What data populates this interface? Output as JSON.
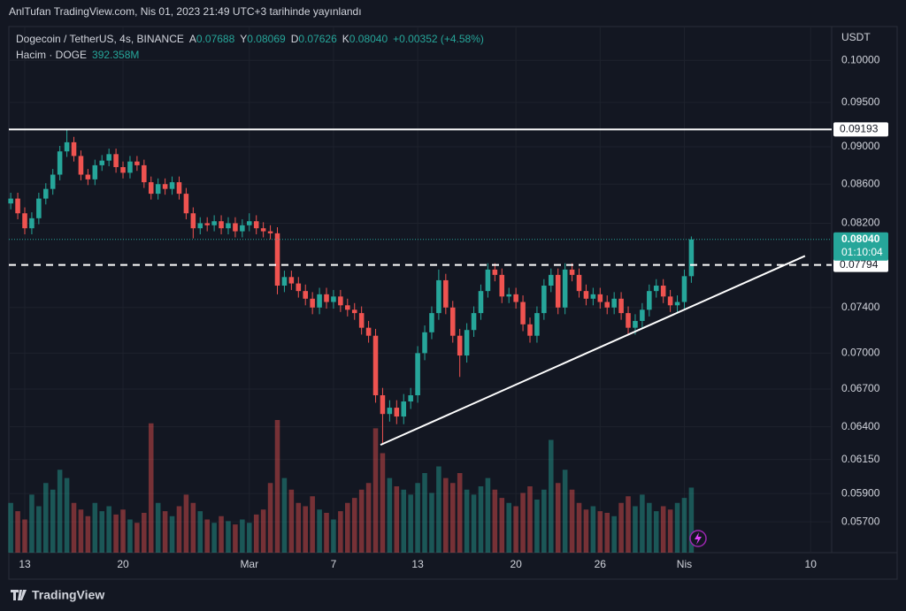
{
  "chart_data": {
    "type": "candlestick",
    "published": "AnlTufan TradingView.com, Nis 01, 2023 21:49 UTC+3 tarihinde yayınlandı",
    "symbol": "Dogecoin / TetherUS, 4s, BINANCE",
    "ohlc_legend": [
      {
        "label": "A",
        "value": "0.07688"
      },
      {
        "label": "Y",
        "value": "0.08069"
      },
      {
        "label": "D",
        "value": "0.07626"
      },
      {
        "label": "K",
        "value": "0.08040"
      }
    ],
    "change": "+0.00352 (+4.58%)",
    "volume_title": "Hacim · DOGE",
    "volume_value": "392.358M",
    "currency": "USDT",
    "brand": "TradingView",
    "log_scale": true,
    "grid": true,
    "up_color": "#26a69a",
    "down_color": "#ef5350",
    "x": [
      0,
      1,
      2,
      3,
      4,
      5,
      6,
      7,
      8,
      9,
      10,
      11,
      12,
      13,
      14,
      15,
      16,
      17,
      18,
      19,
      20,
      21,
      22,
      23,
      24,
      25,
      26,
      27,
      28,
      29,
      30,
      31,
      32,
      33,
      34,
      35,
      36,
      37,
      38,
      39,
      40,
      41,
      42,
      43,
      44,
      45,
      46,
      47,
      48,
      49,
      50,
      51,
      52,
      53,
      54,
      55,
      56,
      57,
      58,
      59,
      60,
      61,
      62,
      63,
      64,
      65,
      66,
      67,
      68,
      69,
      70,
      71,
      72,
      73,
      74,
      75,
      76,
      77,
      78,
      79,
      80,
      81,
      82,
      83,
      84,
      85,
      86,
      87,
      88,
      89,
      90,
      91,
      92,
      93,
      94,
      95,
      96,
      97
    ],
    "open": [
      0.084,
      0.0845,
      0.083,
      0.0815,
      0.0825,
      0.0845,
      0.0855,
      0.087,
      0.0895,
      0.0905,
      0.089,
      0.087,
      0.0865,
      0.088,
      0.0885,
      0.0892,
      0.0878,
      0.0872,
      0.0884,
      0.088,
      0.0862,
      0.085,
      0.086,
      0.0855,
      0.0862,
      0.085,
      0.083,
      0.0815,
      0.082,
      0.0818,
      0.0822,
      0.0815,
      0.082,
      0.0812,
      0.0818,
      0.0822,
      0.0815,
      0.0812,
      0.081,
      0.076,
      0.0768,
      0.0762,
      0.0755,
      0.0748,
      0.074,
      0.0752,
      0.0745,
      0.075,
      0.0742,
      0.0738,
      0.0735,
      0.0722,
      0.0715,
      0.0665,
      0.065,
      0.0655,
      0.0648,
      0.066,
      0.0665,
      0.07,
      0.0718,
      0.0735,
      0.0765,
      0.074,
      0.0715,
      0.0698,
      0.072,
      0.0735,
      0.0755,
      0.0775,
      0.077,
      0.075,
      0.0752,
      0.0745,
      0.0725,
      0.0715,
      0.0735,
      0.076,
      0.077,
      0.074,
      0.0775,
      0.077,
      0.0755,
      0.0748,
      0.0752,
      0.0745,
      0.074,
      0.0748,
      0.0735,
      0.0722,
      0.0728,
      0.0738,
      0.0755,
      0.076,
      0.075,
      0.0742,
      0.0745,
      0.07688
    ],
    "high": [
      0.0851,
      0.0851,
      0.0836,
      0.0831,
      0.0851,
      0.0861,
      0.0876,
      0.0901,
      0.092,
      0.0911,
      0.0896,
      0.0876,
      0.0886,
      0.0891,
      0.0898,
      0.0898,
      0.0884,
      0.089,
      0.089,
      0.0886,
      0.0868,
      0.0866,
      0.0866,
      0.0868,
      0.0868,
      0.0856,
      0.0836,
      0.0826,
      0.0826,
      0.0828,
      0.0828,
      0.0826,
      0.0826,
      0.0824,
      0.083,
      0.0828,
      0.0821,
      0.0818,
      0.0816,
      0.0774,
      0.0774,
      0.0768,
      0.0761,
      0.0754,
      0.0758,
      0.0758,
      0.0756,
      0.0756,
      0.0748,
      0.0744,
      0.0741,
      0.0728,
      0.0721,
      0.0671,
      0.0661,
      0.0661,
      0.0666,
      0.0671,
      0.0706,
      0.0724,
      0.0741,
      0.0775,
      0.0771,
      0.0746,
      0.0721,
      0.0726,
      0.0741,
      0.0761,
      0.0781,
      0.0781,
      0.0776,
      0.0758,
      0.0758,
      0.0751,
      0.0731,
      0.0741,
      0.0766,
      0.0776,
      0.0776,
      0.0781,
      0.0781,
      0.0776,
      0.0761,
      0.0758,
      0.0758,
      0.0751,
      0.0754,
      0.0754,
      0.0741,
      0.0734,
      0.0744,
      0.0761,
      0.0766,
      0.0766,
      0.0756,
      0.0751,
      0.0775,
      0.08069
    ],
    "low": [
      0.0834,
      0.0824,
      0.0809,
      0.0809,
      0.0819,
      0.0839,
      0.0849,
      0.0864,
      0.0889,
      0.0884,
      0.0864,
      0.0859,
      0.0859,
      0.0874,
      0.0879,
      0.0872,
      0.0866,
      0.0866,
      0.0874,
      0.0856,
      0.0844,
      0.0844,
      0.0849,
      0.0849,
      0.0844,
      0.0824,
      0.0805,
      0.0809,
      0.0812,
      0.0812,
      0.0809,
      0.0809,
      0.0806,
      0.0806,
      0.0812,
      0.0809,
      0.0806,
      0.0804,
      0.0752,
      0.0754,
      0.0756,
      0.0749,
      0.0742,
      0.0734,
      0.0734,
      0.0739,
      0.0739,
      0.0736,
      0.0732,
      0.0729,
      0.0716,
      0.0709,
      0.0659,
      0.0627,
      0.0644,
      0.0642,
      0.0642,
      0.0654,
      0.0659,
      0.0694,
      0.0712,
      0.0729,
      0.0734,
      0.0709,
      0.068,
      0.0692,
      0.0714,
      0.0729,
      0.0749,
      0.0764,
      0.0744,
      0.0744,
      0.0739,
      0.0719,
      0.0709,
      0.0709,
      0.0729,
      0.0754,
      0.0734,
      0.0734,
      0.0764,
      0.0749,
      0.0742,
      0.0742,
      0.0739,
      0.0734,
      0.0734,
      0.0729,
      0.0716,
      0.0716,
      0.0722,
      0.0732,
      0.0749,
      0.0744,
      0.0736,
      0.0736,
      0.0739,
      0.07626
    ],
    "close": [
      0.0845,
      0.083,
      0.0815,
      0.0825,
      0.0845,
      0.0855,
      0.087,
      0.0895,
      0.0905,
      0.089,
      0.087,
      0.0865,
      0.088,
      0.0885,
      0.0892,
      0.0878,
      0.0872,
      0.0884,
      0.088,
      0.0862,
      0.085,
      0.086,
      0.0855,
      0.0862,
      0.085,
      0.083,
      0.0815,
      0.082,
      0.0818,
      0.0822,
      0.0815,
      0.082,
      0.0812,
      0.0818,
      0.0822,
      0.0815,
      0.0812,
      0.081,
      0.076,
      0.0768,
      0.0762,
      0.0755,
      0.0748,
      0.074,
      0.0752,
      0.0745,
      0.075,
      0.0742,
      0.0738,
      0.0735,
      0.0722,
      0.0715,
      0.0665,
      0.065,
      0.0655,
      0.0648,
      0.066,
      0.0665,
      0.07,
      0.0718,
      0.0735,
      0.0765,
      0.074,
      0.0715,
      0.0698,
      0.072,
      0.0735,
      0.0755,
      0.0775,
      0.077,
      0.075,
      0.0752,
      0.0745,
      0.0725,
      0.0715,
      0.0735,
      0.076,
      0.077,
      0.074,
      0.0775,
      0.077,
      0.0755,
      0.0748,
      0.0752,
      0.0745,
      0.074,
      0.0748,
      0.0735,
      0.0722,
      0.0728,
      0.0738,
      0.0755,
      0.076,
      0.075,
      0.0742,
      0.0745,
      0.07688,
      0.0804
    ],
    "volume": [
      300,
      250,
      200,
      350,
      280,
      420,
      380,
      500,
      450,
      300,
      260,
      220,
      300,
      250,
      280,
      230,
      260,
      200,
      180,
      240,
      780,
      300,
      250,
      220,
      280,
      350,
      300,
      250,
      200,
      180,
      220,
      190,
      170,
      200,
      180,
      230,
      260,
      420,
      800,
      450,
      380,
      300,
      280,
      340,
      260,
      240,
      200,
      250,
      300,
      330,
      380,
      420,
      750,
      600,
      450,
      400,
      380,
      350,
      420,
      480,
      360,
      520,
      450,
      420,
      480,
      380,
      350,
      400,
      450,
      380,
      330,
      300,
      280,
      360,
      400,
      320,
      380,
      680,
      420,
      500,
      380,
      300,
      260,
      280,
      250,
      240,
      220,
      300,
      340,
      280,
      350,
      300,
      250,
      280,
      260,
      300,
      330,
      392.358
    ],
    "xlim": [
      -0.27,
      117
    ],
    "xticks": [
      {
        "value": 2,
        "label": "13"
      },
      {
        "value": 16,
        "label": "20"
      },
      {
        "value": 34,
        "label": "Mar"
      },
      {
        "value": 46,
        "label": "7"
      },
      {
        "value": 58,
        "label": "13"
      },
      {
        "value": 72,
        "label": "20"
      },
      {
        "value": 84,
        "label": "26"
      },
      {
        "value": 96,
        "label": "Nis"
      },
      {
        "value": 114,
        "label": "10"
      }
    ],
    "ylim": [
      0.0549,
      0.1042
    ],
    "yticks": [
      {
        "value": 0.1,
        "label": "0.10000"
      },
      {
        "value": 0.095,
        "label": "0.09500"
      },
      {
        "value": 0.09,
        "label": "0.09000"
      },
      {
        "value": 0.086,
        "label": "0.08600"
      },
      {
        "value": 0.082,
        "label": "0.08200"
      },
      {
        "value": 0.074,
        "label": "0.07400"
      },
      {
        "value": 0.07,
        "label": "0.07000"
      },
      {
        "value": 0.067,
        "label": "0.06700"
      },
      {
        "value": 0.064,
        "label": "0.06400"
      },
      {
        "value": 0.0615,
        "label": "0.06150"
      },
      {
        "value": 0.059,
        "label": "0.05900"
      },
      {
        "value": 0.057,
        "label": "0.05700"
      }
    ],
    "levels": [
      {
        "value": 0.09193,
        "label": "0.09193",
        "style": "solid"
      },
      {
        "value": 0.07794,
        "label": "0.07794",
        "style": "dashed"
      }
    ],
    "last_price": {
      "value": 0.0804,
      "label": "0.08040",
      "countdown": "01:10:04"
    },
    "trendline": {
      "x": [
        52.7,
        113.2
      ],
      "y": [
        0.0626,
        0.0788
      ]
    }
  }
}
